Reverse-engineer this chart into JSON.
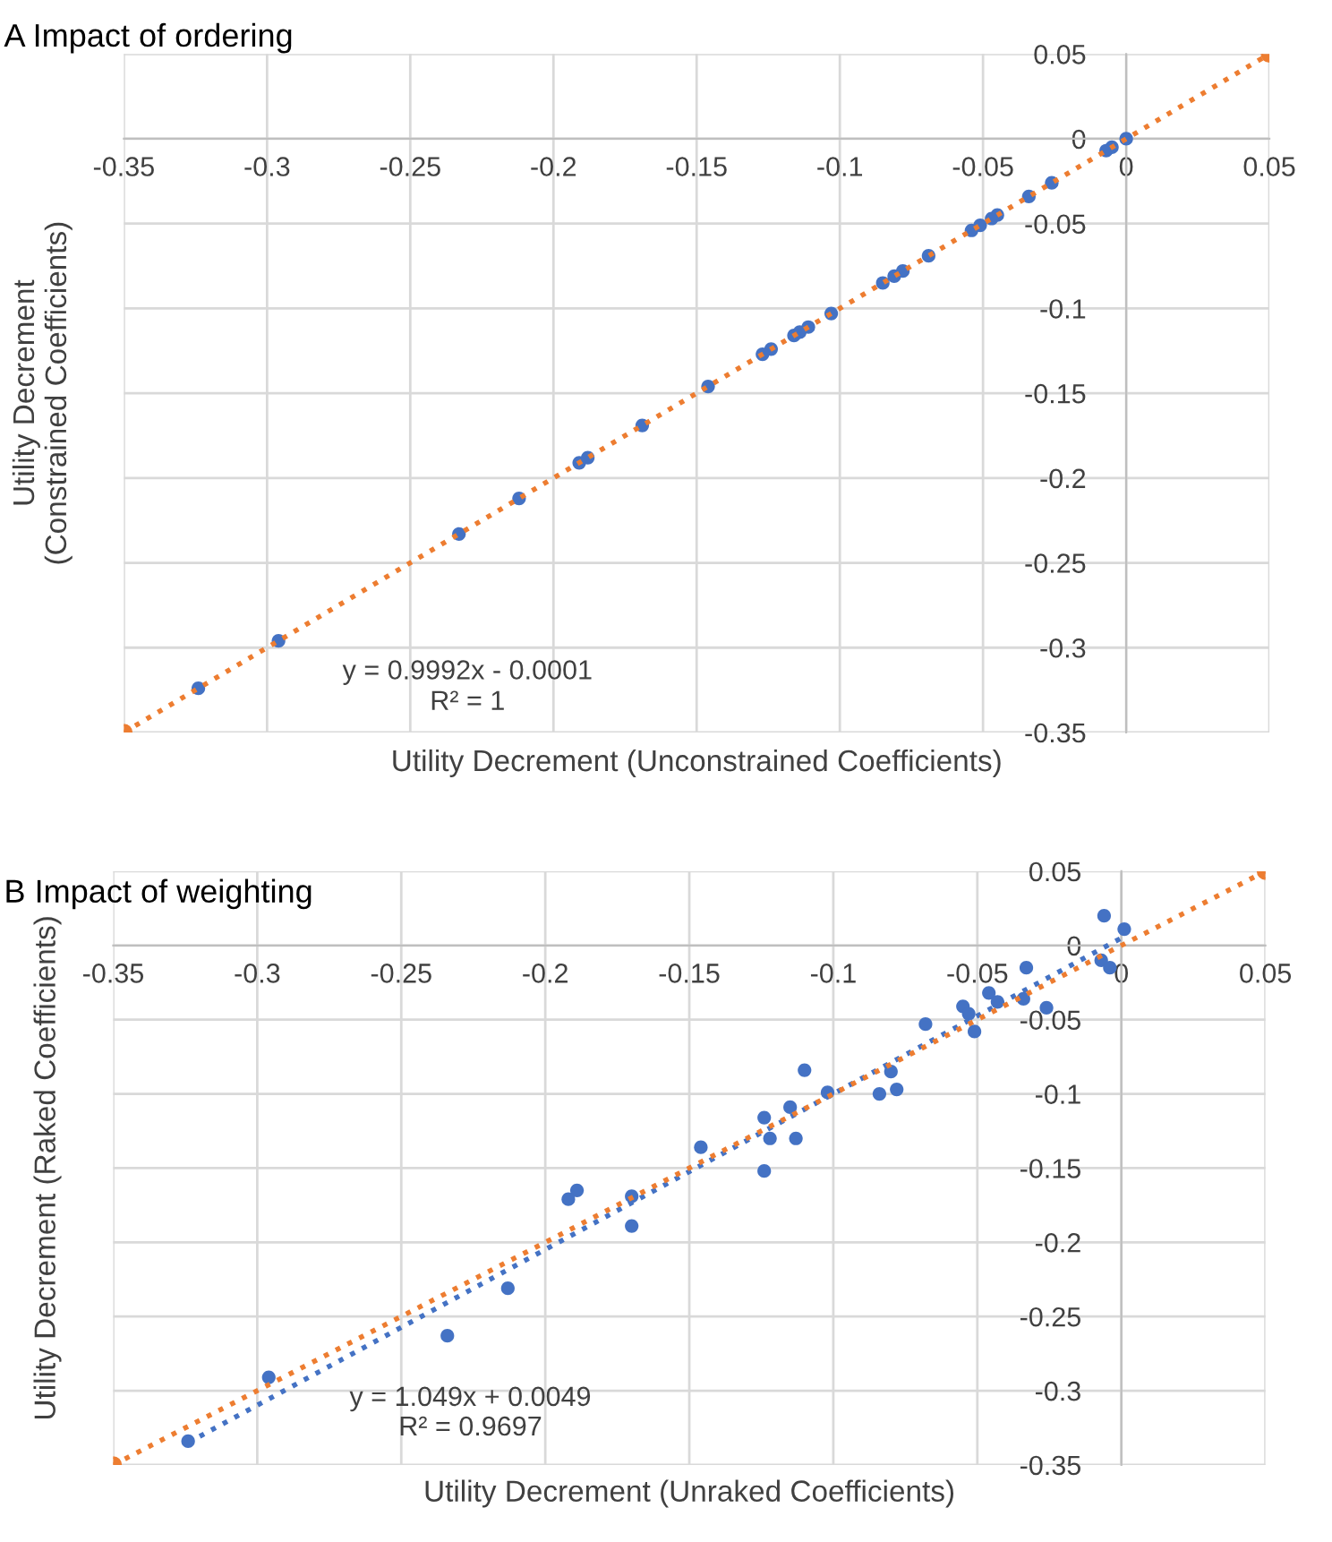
{
  "chart_data": [
    {
      "type": "scatter",
      "title": "A Impact of ordering",
      "xlabel": "Utility Decrement (Unconstrained Coefficients)",
      "ylabel": "Utility Decrement\n(Constrained Coefficients)",
      "annotations": [
        "y = 0.9992x - 0.0001",
        "R² = 1"
      ],
      "series": [
        {
          "color": "#4472c4",
          "x": [
            0.0,
            -0.005,
            -0.007,
            -0.026,
            -0.034,
            -0.045,
            -0.047,
            -0.051,
            -0.054,
            -0.069,
            -0.078,
            -0.081,
            -0.085,
            -0.103,
            -0.111,
            -0.114,
            -0.116,
            -0.124,
            -0.127,
            -0.146,
            -0.169,
            -0.188,
            -0.191,
            -0.212,
            -0.233,
            -0.296,
            -0.324
          ],
          "values": [
            0.0,
            -0.005,
            -0.007,
            -0.026,
            -0.034,
            -0.045,
            -0.047,
            -0.051,
            -0.054,
            -0.069,
            -0.078,
            -0.081,
            -0.085,
            -0.103,
            -0.111,
            -0.114,
            -0.116,
            -0.124,
            -0.127,
            -0.146,
            -0.169,
            -0.188,
            -0.191,
            -0.212,
            -0.233,
            -0.296,
            -0.324
          ]
        },
        {
          "type": "line",
          "color": "#ed7d31",
          "line_style": "dotted",
          "marker": "circle",
          "x": [
            -0.35,
            0.05
          ],
          "values": [
            -0.35,
            0.05
          ]
        }
      ],
      "xlim": [
        -0.35,
        0.05
      ],
      "ylim": [
        -0.35,
        0.05
      ],
      "xticks": [
        -0.35,
        -0.3,
        -0.25,
        -0.2,
        -0.15,
        -0.1,
        -0.05,
        0,
        0.05
      ],
      "yticks": [
        -0.35,
        -0.3,
        -0.25,
        -0.2,
        -0.15,
        -0.1,
        -0.05,
        0,
        0.05
      ],
      "grid": true,
      "legend": false
    },
    {
      "type": "scatter",
      "title": "B Impact of weighting",
      "xlabel": "Utility Decrement (Unraked Coefficients)",
      "ylabel": "Utility Decrement (Raked Coefficients)",
      "annotations": [
        "y = 1.049x + 0.0049",
        "R² = 0.9697"
      ],
      "series": [
        {
          "color": "#4472c4",
          "x": [
            -0.006,
            0.001,
            -0.007,
            -0.004,
            -0.033,
            -0.034,
            -0.026,
            -0.046,
            -0.043,
            -0.055,
            -0.053,
            -0.051,
            -0.068,
            -0.08,
            -0.084,
            -0.078,
            -0.102,
            -0.11,
            -0.115,
            -0.124,
            -0.122,
            -0.113,
            -0.146,
            -0.124,
            -0.17,
            -0.17,
            -0.189,
            -0.192,
            -0.213,
            -0.234,
            -0.296,
            -0.324
          ],
          "values": [
            0.02,
            0.011,
            -0.01,
            -0.015,
            -0.015,
            -0.036,
            -0.042,
            -0.032,
            -0.038,
            -0.041,
            -0.046,
            -0.058,
            -0.053,
            -0.085,
            -0.1,
            -0.097,
            -0.099,
            -0.084,
            -0.109,
            -0.116,
            -0.13,
            -0.13,
            -0.136,
            -0.152,
            -0.169,
            -0.189,
            -0.165,
            -0.171,
            -0.231,
            -0.263,
            -0.291,
            -0.334
          ]
        },
        {
          "type": "line",
          "color": "#4472c4",
          "line_style": "dotted",
          "marker": "none",
          "x": [
            -0.324,
            0.0
          ],
          "values": [
            -0.335,
            0.005
          ]
        },
        {
          "type": "line",
          "color": "#ed7d31",
          "line_style": "dotted",
          "marker": "circle",
          "x": [
            -0.35,
            0.05
          ],
          "values": [
            -0.35,
            0.05
          ]
        }
      ],
      "xlim": [
        -0.35,
        0.05
      ],
      "ylim": [
        -0.35,
        0.05
      ],
      "xticks": [
        -0.35,
        -0.3,
        -0.25,
        -0.2,
        -0.15,
        -0.1,
        -0.05,
        0,
        0.05
      ],
      "yticks": [
        -0.35,
        -0.3,
        -0.25,
        -0.2,
        -0.15,
        -0.1,
        -0.05,
        0,
        0.05
      ],
      "grid": true,
      "legend": false
    }
  ]
}
